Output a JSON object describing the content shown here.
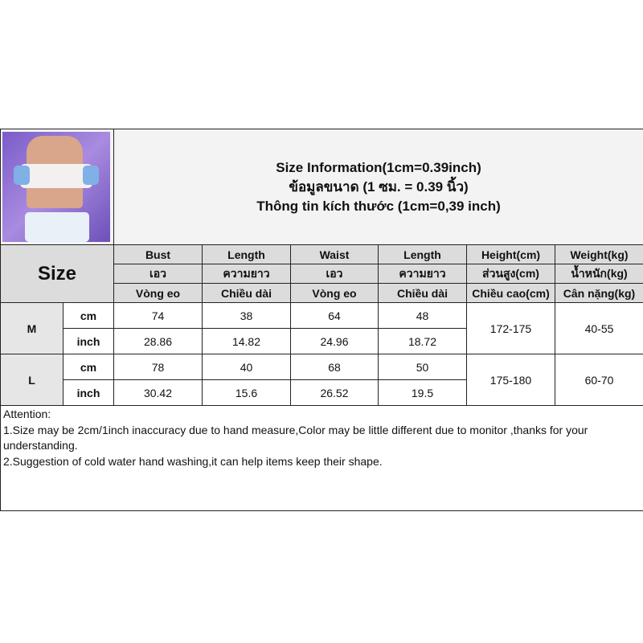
{
  "title": {
    "line1": "Size Information(1cm=0.39inch)",
    "line2": "ข้อมูลขนาด (1 ซม. = 0.39 นิ้ว)",
    "line3": "Thông tin kích thước (1cm=0,39 inch)"
  },
  "size_label": "Size",
  "headers": [
    [
      "Bust",
      "Length",
      "Waist",
      "Length",
      "Height(cm)",
      "Weight(kg)"
    ],
    [
      "เอว",
      "ความยาว",
      "เอว",
      "ความยาว",
      "ส่วนสูง(cm)",
      "น้ำหนัก(kg)"
    ],
    [
      "Vòng eo",
      "Chiều dài",
      "Vòng eo",
      "Chiều dài",
      "Chiều cao(cm)",
      "Cân nặng(kg)"
    ]
  ],
  "sizes": [
    {
      "size": "M",
      "height": "172-175",
      "weight": "40-55",
      "rows": [
        {
          "unit": "cm",
          "values": [
            "74",
            "38",
            "64",
            "48"
          ]
        },
        {
          "unit": "inch",
          "values": [
            "28.86",
            "14.82",
            "24.96",
            "18.72"
          ]
        }
      ]
    },
    {
      "size": "L",
      "height": "175-180",
      "weight": "60-70",
      "rows": [
        {
          "unit": "cm",
          "values": [
            "78",
            "40",
            "68",
            "50"
          ]
        },
        {
          "unit": "inch",
          "values": [
            "30.42",
            "15.6",
            "26.52",
            "19.5"
          ]
        }
      ]
    }
  ],
  "attention": {
    "heading": "Attention:",
    "line1": "1.Size may be 2cm/1inch inaccuracy due to hand measure,Color may be little different due to monitor ,thanks for your understanding.",
    "line2": "2.Suggestion of cold water hand washing,it can help items keep their shape."
  }
}
